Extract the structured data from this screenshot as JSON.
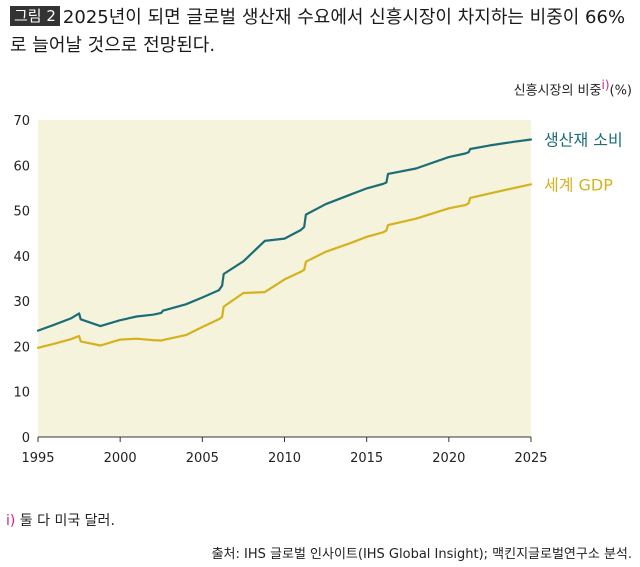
{
  "title": {
    "badge": "그림 2",
    "text": "2025년이 되면 글로벌 생산재 수요에서 신흥시장이 차지하는 비중이 66%로 늘어날 것으로 전망된다."
  },
  "unit_label": {
    "text": "신흥시장의 비중",
    "mark": "i)",
    "unit": "(%)"
  },
  "footnote": {
    "mark": "i)",
    "text": " 둘 다 미국 달러."
  },
  "source": "출처: IHS 글로벌 인사이트(IHS Global Insight); 맥킨지글로벌연구소 분석.",
  "colors": {
    "background": "#f6f3dc",
    "teal": "#1b6e76",
    "gold": "#d4b21e",
    "badge": "#333333",
    "footnote_mark": "#d4237a"
  },
  "chart_data": {
    "type": "line",
    "title": "",
    "xlabel": "",
    "ylabel": "신흥시장의 비중 (%)",
    "xlim": [
      1995,
      2025
    ],
    "ylim": [
      0,
      70
    ],
    "x_ticks": [
      "1995",
      "2000",
      "2005",
      "2010",
      "2015",
      "2020",
      "2025"
    ],
    "y_ticks": [
      "0",
      "10",
      "20",
      "30",
      "40",
      "50",
      "60",
      "70"
    ],
    "grid": false,
    "legend": "inline-right",
    "series": [
      {
        "name": "생산재 소비",
        "color": "#1b6e76",
        "x": [
          1995,
          1996,
          1997,
          1997.5,
          1997.6,
          1998.8,
          2000,
          2001,
          2002,
          2002.5,
          2002.6,
          2004,
          2005,
          2006,
          2006.2,
          2006.3,
          2007.5,
          2008.8,
          2010,
          2011,
          2011.2,
          2011.3,
          2012.5,
          2014,
          2015,
          2016,
          2016.2,
          2016.3,
          2018,
          2020,
          2021,
          2021.2,
          2021.3,
          2022.5,
          2024,
          2025
        ],
        "values": [
          23.5,
          24.8,
          26.2,
          27.3,
          26.0,
          24.5,
          25.8,
          26.6,
          27.0,
          27.4,
          27.9,
          29.3,
          30.8,
          32.4,
          33.4,
          36.0,
          38.8,
          43.3,
          43.8,
          45.7,
          46.4,
          49.1,
          51.4,
          53.5,
          54.9,
          55.9,
          56.2,
          58.1,
          59.3,
          61.8,
          62.6,
          62.9,
          63.6,
          64.4,
          65.2,
          65.7
        ]
      },
      {
        "name": "세계 GDP",
        "color": "#d4b21e",
        "x": [
          1995,
          1996,
          1997,
          1997.5,
          1997.6,
          1998.8,
          2000,
          2001,
          2002,
          2002.5,
          2002.6,
          2004,
          2005,
          2006,
          2006.2,
          2006.3,
          2007.5,
          2008.8,
          2010,
          2011,
          2011.2,
          2011.3,
          2012.5,
          2014,
          2015,
          2016,
          2016.2,
          2016.3,
          2018,
          2020,
          2021,
          2021.2,
          2021.3,
          2022.5,
          2024,
          2025
        ],
        "values": [
          19.7,
          20.6,
          21.6,
          22.3,
          21.1,
          20.2,
          21.5,
          21.7,
          21.4,
          21.3,
          21.4,
          22.5,
          24.3,
          26.0,
          26.5,
          28.8,
          31.8,
          32.0,
          34.8,
          36.5,
          36.9,
          38.7,
          40.9,
          42.8,
          44.2,
          45.2,
          45.6,
          46.8,
          48.2,
          50.5,
          51.2,
          51.6,
          52.8,
          53.8,
          55.0,
          55.8
        ]
      }
    ]
  }
}
